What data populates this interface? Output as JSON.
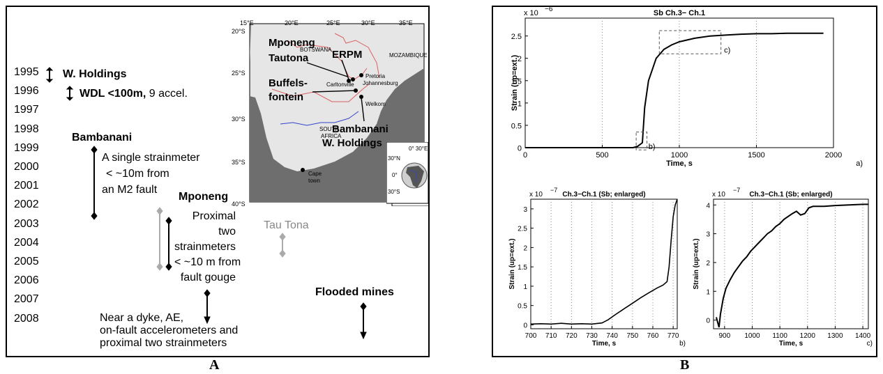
{
  "panel_labels": {
    "a": "A",
    "b": "B"
  },
  "timeline": {
    "years": [
      "1995",
      "1996",
      "1997",
      "1998",
      "1999",
      "2000",
      "2001",
      "2002",
      "2003",
      "2004",
      "2005",
      "2006",
      "2007",
      "2008"
    ],
    "whold_1995": "W. Holdings",
    "wdl_bold": "WDL <100m,",
    "wdl_rest": " 9 accel.",
    "bambanani_title": "Bambanani",
    "bambanani_l1": "A single strainmeter",
    "bambanani_l2": "< ~10m from",
    "bambanani_l3": "an M2 fault",
    "mponeng_title": "Mponeng",
    "mponeng_l1": "Proximal two",
    "mponeng_l2": "strainmeters",
    "mponeng_l3": "< ~10 m from",
    "mponeng_l4": "fault gouge",
    "tautona": "Tau Tona",
    "flooded": "Flooded mines",
    "dyke_l1": "Near a dyke,  AE,",
    "dyke_l2": "on-fault accelerometers and",
    "dyke_l3": "proximal two strainmeters"
  },
  "map": {
    "lon_ticks": [
      "15°E",
      "20°E",
      "25°E",
      "30°E",
      "35°E"
    ],
    "lat_ticks": [
      "20°S",
      "25°S",
      "30°S",
      "35°S",
      "40°S"
    ],
    "mponeng": "Mponeng",
    "tautona": "Tautona",
    "erpm": "ERPM",
    "buffels1": "Buffels-",
    "buffels2": "fontein",
    "bambanani": "Bambanani",
    "wholdings": "W. Holdings",
    "botswana": "BOTSWANA",
    "mozambique": "MOZAMBIQUE",
    "south": "SOUTH",
    "africa": "AFRICA",
    "pretoria": "Pretoria",
    "johannesburg": "Johannesburg",
    "carltonville": "Carltonville",
    "welkom": "Welkom",
    "cape": "Cape",
    "town": "town",
    "inset_lon": "0° 30°E",
    "inset_30n": "30°N",
    "inset_0": "0°",
    "inset_30s": "30°S"
  },
  "chart_data": [
    {
      "type": "line",
      "title": "Sb  Ch.3− Ch.1",
      "xlabel": "Time, s",
      "ylabel": "Strain (up=ext.)",
      "exponent": "x 10",
      "exponent_power": "−6",
      "corner_label": "a)",
      "xlim": [
        0,
        2000
      ],
      "ylim": [
        0,
        2.9
      ],
      "xticks": [
        "0",
        "500",
        "1000",
        "1500",
        "2000"
      ],
      "yticks": [
        "0",
        "0.5",
        "1",
        "1.5",
        "2",
        "2.5"
      ],
      "box_labels": [
        "b)",
        "c)"
      ],
      "x": [
        0,
        700,
        730,
        760,
        775,
        800,
        850,
        900,
        950,
        1000,
        1100,
        1200,
        1300,
        1400,
        1500,
        1600,
        1700,
        1800,
        1935
      ],
      "y": [
        0,
        0,
        0.03,
        0.11,
        0.9,
        1.5,
        2.0,
        2.2,
        2.3,
        2.37,
        2.45,
        2.5,
        2.52,
        2.54,
        2.55,
        2.55,
        2.56,
        2.56,
        2.56
      ]
    },
    {
      "type": "line",
      "title": "Ch.3−Ch.1 (Sb; enlarged)",
      "xlabel": "Time, s",
      "ylabel": "Strain (up=ext.)",
      "exponent": "x 10",
      "exponent_power": "−7",
      "corner_label": "b)",
      "xlim": [
        700,
        772
      ],
      "ylim": [
        -0.1,
        3.25
      ],
      "xticks": [
        "700",
        "710",
        "720",
        "730",
        "740",
        "750",
        "760",
        "770"
      ],
      "yticks": [
        "0",
        "0.5",
        "1",
        "1.5",
        "2",
        "2.5",
        "3"
      ],
      "x": [
        700,
        705,
        710,
        715,
        720,
        725,
        730,
        735,
        738,
        742,
        746,
        750,
        754,
        758,
        762,
        765,
        767,
        768,
        769,
        770,
        771,
        772
      ],
      "y": [
        0.02,
        0.03,
        0.02,
        0.04,
        0.02,
        0.03,
        0.02,
        0.05,
        0.13,
        0.28,
        0.42,
        0.56,
        0.7,
        0.83,
        0.95,
        1.03,
        1.12,
        1.5,
        2.2,
        2.8,
        3.1,
        3.25
      ]
    },
    {
      "type": "line",
      "title": "Ch.3−Ch.1 (Sb; enlarged)",
      "xlabel": "Time, s",
      "ylabel": "Strain (up=ext.)",
      "exponent": "x 10",
      "exponent_power": "−7",
      "corner_label": "c)",
      "xlim": [
        860,
        1420
      ],
      "ylim": [
        -0.3,
        4.2
      ],
      "xticks": [
        "900",
        "1000",
        "1100",
        "1200",
        "1300",
        "1400"
      ],
      "yticks": [
        "0",
        "1",
        "2",
        "3",
        "4"
      ],
      "x": [
        870,
        880,
        885,
        895,
        905,
        920,
        935,
        950,
        965,
        980,
        995,
        1010,
        1025,
        1040,
        1055,
        1070,
        1085,
        1100,
        1115,
        1130,
        1145,
        1160,
        1175,
        1190,
        1205,
        1220,
        1260,
        1300,
        1350,
        1400,
        1420
      ],
      "y": [
        0.1,
        -0.25,
        0.2,
        0.75,
        1.1,
        1.4,
        1.65,
        1.85,
        2.05,
        2.2,
        2.4,
        2.55,
        2.7,
        2.85,
        3.0,
        3.1,
        3.25,
        3.35,
        3.5,
        3.6,
        3.7,
        3.78,
        3.65,
        3.7,
        3.9,
        3.95,
        3.95,
        3.98,
        4.0,
        4.02,
        4.02
      ]
    }
  ]
}
